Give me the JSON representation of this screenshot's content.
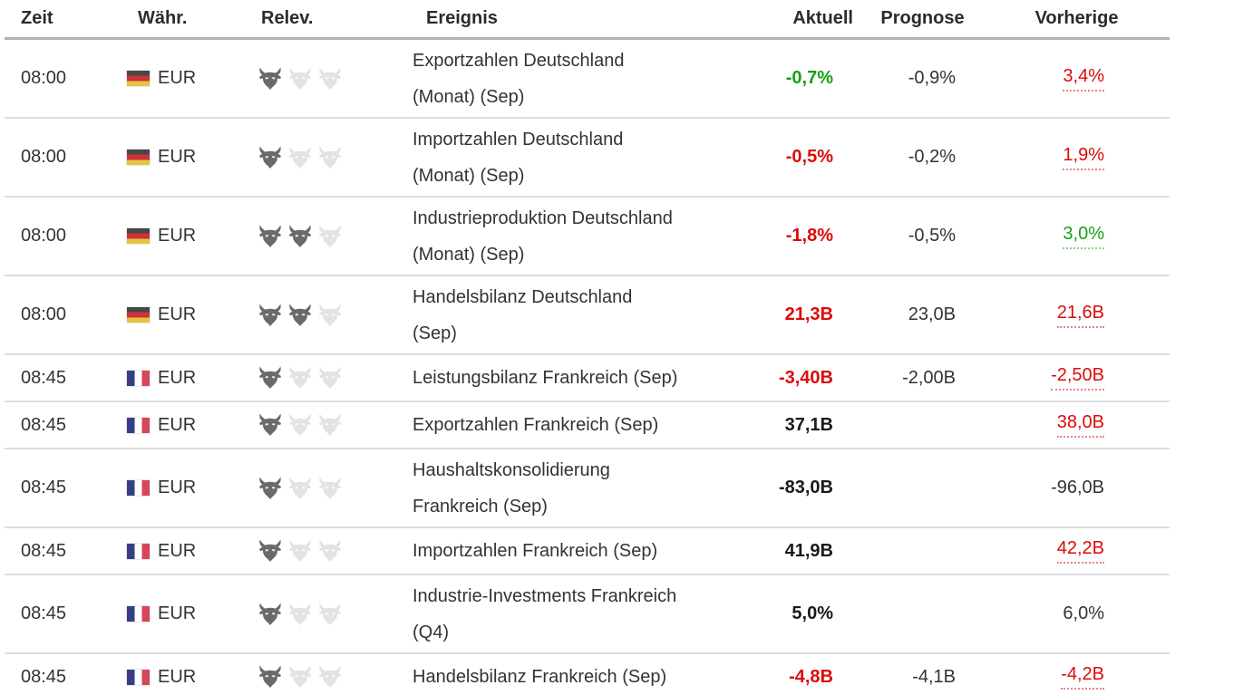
{
  "table": {
    "columns": [
      {
        "key": "time",
        "label": "Zeit"
      },
      {
        "key": "currency",
        "label": "Währ."
      },
      {
        "key": "relevance",
        "label": "Relev."
      },
      {
        "key": "event",
        "label": "Ereignis"
      },
      {
        "key": "actual",
        "label": "Aktuell"
      },
      {
        "key": "forecast",
        "label": "Prognose"
      },
      {
        "key": "previous",
        "label": "Vorherige"
      }
    ]
  },
  "colors": {
    "better_than_expected_green": "#16a016",
    "worse_than_expected_red": "#dc0a0a",
    "neutral_text": "#333333",
    "header_text": "#2b2b2b",
    "row_separator": "#dcdcdc",
    "header_separator": "#b3b3b3",
    "bull_active": "#6a6a6a",
    "bull_inactive": "#e3e3e3"
  },
  "rows": [
    {
      "time": "08:00",
      "flag": "de",
      "country": "Deutschland",
      "currency": "EUR",
      "relevance": 1,
      "event": [
        "Exportzahlen Deutschland",
        "(Monat) (Sep)"
      ],
      "actual": {
        "text": "-0,7%",
        "state": "green"
      },
      "forecast": {
        "text": "-0,9%"
      },
      "previous": {
        "text": "3,4%",
        "state": "red",
        "revised": true
      }
    },
    {
      "time": "08:00",
      "flag": "de",
      "country": "Deutschland",
      "currency": "EUR",
      "relevance": 1,
      "event": [
        "Importzahlen Deutschland",
        "(Monat) (Sep)"
      ],
      "actual": {
        "text": "-0,5%",
        "state": "red"
      },
      "forecast": {
        "text": "-0,2%"
      },
      "previous": {
        "text": "1,9%",
        "state": "red",
        "revised": true
      }
    },
    {
      "time": "08:00",
      "flag": "de",
      "country": "Deutschland",
      "currency": "EUR",
      "relevance": 2,
      "event": [
        "Industrieproduktion Deutschland",
        "(Monat) (Sep)"
      ],
      "actual": {
        "text": "-1,8%",
        "state": "red"
      },
      "forecast": {
        "text": "-0,5%"
      },
      "previous": {
        "text": "3,0%",
        "state": "green",
        "revised": true
      }
    },
    {
      "time": "08:00",
      "flag": "de",
      "country": "Deutschland",
      "currency": "EUR",
      "relevance": 2,
      "event": [
        "Handelsbilanz Deutschland",
        "(Sep)"
      ],
      "actual": {
        "text": "21,3B",
        "state": "red"
      },
      "forecast": {
        "text": "23,0B"
      },
      "previous": {
        "text": "21,6B",
        "state": "red",
        "revised": true
      }
    },
    {
      "time": "08:45",
      "flag": "fr",
      "country": "Frankreich",
      "currency": "EUR",
      "relevance": 1,
      "event": [
        "Leistungsbilanz Frankreich (Sep)"
      ],
      "actual": {
        "text": "-3,40B",
        "state": "red"
      },
      "forecast": {
        "text": "-2,00B"
      },
      "previous": {
        "text": "-2,50B",
        "state": "red",
        "revised": true
      }
    },
    {
      "time": "08:45",
      "flag": "fr",
      "country": "Frankreich",
      "currency": "EUR",
      "relevance": 1,
      "event": [
        "Exportzahlen Frankreich (Sep)"
      ],
      "actual": {
        "text": "37,1B",
        "state": "black"
      },
      "forecast": null,
      "previous": {
        "text": "38,0B",
        "state": "red",
        "revised": true
      }
    },
    {
      "time": "08:45",
      "flag": "fr",
      "country": "Frankreich",
      "currency": "EUR",
      "relevance": 1,
      "event": [
        "Haushaltskonsolidierung",
        "Frankreich (Sep)"
      ],
      "actual": {
        "text": "-83,0B",
        "state": "black"
      },
      "forecast": null,
      "previous": {
        "text": "-96,0B"
      }
    },
    {
      "time": "08:45",
      "flag": "fr",
      "country": "Frankreich",
      "currency": "EUR",
      "relevance": 1,
      "event": [
        "Importzahlen Frankreich (Sep)"
      ],
      "actual": {
        "text": "41,9B",
        "state": "black"
      },
      "forecast": null,
      "previous": {
        "text": "42,2B",
        "state": "red",
        "revised": true
      }
    },
    {
      "time": "08:45",
      "flag": "fr",
      "country": "Frankreich",
      "currency": "EUR",
      "relevance": 1,
      "event": [
        "Industrie-Investments Frankreich",
        "(Q4)"
      ],
      "actual": {
        "text": "5,0%",
        "state": "black"
      },
      "forecast": null,
      "previous": {
        "text": "6,0%"
      }
    },
    {
      "time": "08:45",
      "flag": "fr",
      "country": "Frankreich",
      "currency": "EUR",
      "relevance": 1,
      "event": [
        "Handelsbilanz Frankreich (Sep)"
      ],
      "actual": {
        "text": "-4,8B",
        "state": "red"
      },
      "forecast": {
        "text": "-4,1B"
      },
      "previous": {
        "text": "-4,2B",
        "state": "red",
        "revised": true
      }
    }
  ]
}
